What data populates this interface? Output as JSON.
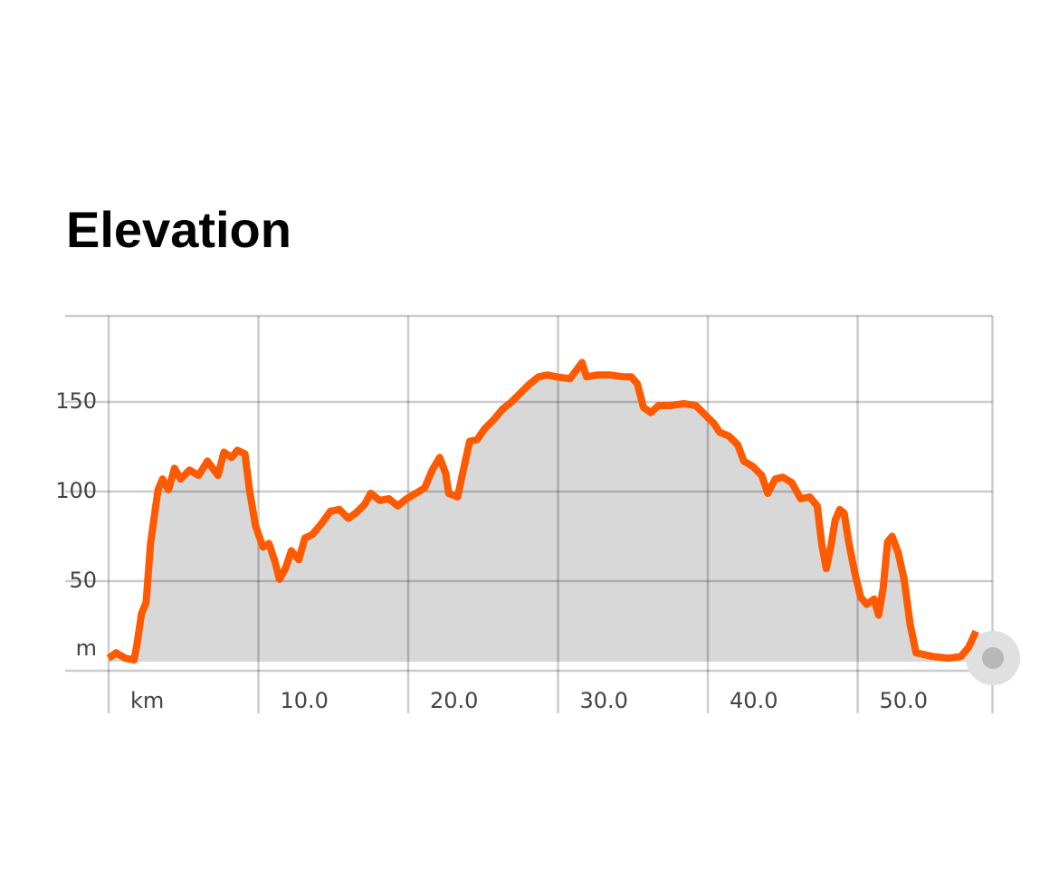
{
  "chart_data": {
    "type": "area",
    "title": "Elevation",
    "color": "#ff5a00",
    "fill": "#d8d8d8",
    "grid": true,
    "xlim": [
      0,
      59
    ],
    "ylim": [
      0,
      198
    ],
    "xticks": [
      {
        "value": 0,
        "label": "km"
      },
      {
        "value": 10,
        "label": "10.0"
      },
      {
        "value": 20,
        "label": "20.0"
      },
      {
        "value": 30,
        "label": "30.0"
      },
      {
        "value": 40,
        "label": "40.0"
      },
      {
        "value": 50,
        "label": "50.0"
      }
    ],
    "yticks": [
      {
        "value": 12,
        "label": "m"
      },
      50,
      100,
      150
    ],
    "x": [
      0,
      0.5,
      1.1,
      1.7,
      1.9,
      2.2,
      2.5,
      2.8,
      3.3,
      3.6,
      4.0,
      4.4,
      4.8,
      5.4,
      6.0,
      6.6,
      7.3,
      7.7,
      8.2,
      8.6,
      9.1,
      9.4,
      9.8,
      10.3,
      10.7,
      11.1,
      11.4,
      11.8,
      12.2,
      12.7,
      13.1,
      13.6,
      14.2,
      14.8,
      15.4,
      16.0,
      16.5,
      17.1,
      17.5,
      18.1,
      18.7,
      19.3,
      19.9,
      20.5,
      21.1,
      21.6,
      22.1,
      22.5,
      22.7,
      23.3,
      23.7,
      24.1,
      24.6,
      25.1,
      25.7,
      26.3,
      26.9,
      27.5,
      28.1,
      28.7,
      29.3,
      29.9,
      30.8,
      31.6,
      31.9,
      32.6,
      33.5,
      34.4,
      34.9,
      35.3,
      35.7,
      36.2,
      36.7,
      37.5,
      38.4,
      39.2,
      39.8,
      40.4,
      40.8,
      41.4,
      42.0,
      42.4,
      43.0,
      43.6,
      44.0,
      44.5,
      45.0,
      45.6,
      46.2,
      46.8,
      47.3,
      47.6,
      47.9,
      48.2,
      48.5,
      48.8,
      49.1,
      49.4,
      49.8,
      50.2,
      50.6,
      51.1,
      51.4,
      51.7,
      52.0,
      52.3,
      52.7,
      53.1,
      53.5,
      53.9,
      55.0,
      56.1,
      56.9,
      57.4,
      57.9
    ],
    "values": [
      7,
      10,
      7,
      6,
      15,
      32,
      38,
      71,
      101,
      107,
      101,
      113,
      107,
      112,
      109,
      117,
      109,
      122,
      119,
      123,
      121,
      101,
      81,
      69,
      71,
      61,
      51,
      57,
      67,
      62,
      74,
      76,
      82,
      89,
      90,
      85,
      88,
      93,
      99,
      95,
      96,
      92,
      96,
      99,
      102,
      112,
      119,
      110,
      99,
      97,
      113,
      128,
      129,
      135,
      140,
      146,
      150,
      155,
      160,
      164,
      165,
      164,
      163,
      172,
      164,
      165,
      165,
      164,
      164,
      160,
      147,
      144,
      148,
      148,
      149,
      148,
      143,
      138,
      133,
      131,
      126,
      117,
      114,
      109,
      99,
      107,
      108,
      105,
      96,
      97,
      92,
      71,
      57,
      69,
      84,
      90,
      88,
      72,
      55,
      41,
      37,
      40,
      31,
      46,
      72,
      75,
      66,
      51,
      26,
      10,
      8,
      7,
      8,
      13,
      22
    ]
  }
}
